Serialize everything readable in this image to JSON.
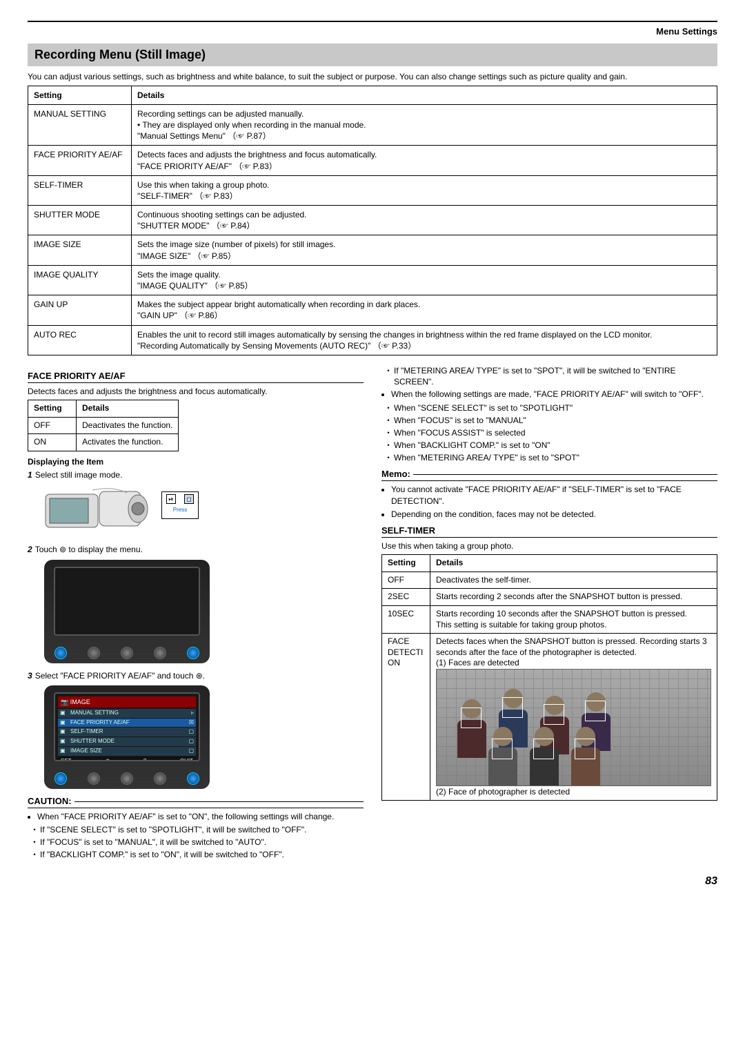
{
  "header": {
    "section": "Menu Settings"
  },
  "title": "Recording Menu (Still Image)",
  "intro": "You can adjust various settings, such as brightness and white balance, to suit the subject or purpose. You can also change settings such as picture quality and gain.",
  "main_table": {
    "columns": [
      "Setting",
      "Details"
    ],
    "rows": [
      {
        "setting": "MANUAL SETTING",
        "details": "Recording settings can be adjusted manually.\n• They are displayed only when recording in the manual mode.\n\"Manual Settings Menu\" （☞ P.87）"
      },
      {
        "setting": "FACE PRIORITY AE/AF",
        "details": "Detects faces and adjusts the brightness and focus automatically.\n\"FACE PRIORITY AE/AF\" （☞ P.83）"
      },
      {
        "setting": "SELF-TIMER",
        "details": "Use this when taking a group photo.\n\"SELF-TIMER\" （☞ P.83）"
      },
      {
        "setting": "SHUTTER MODE",
        "details": "Continuous shooting settings can be adjusted.\n\"SHUTTER MODE\" （☞ P.84）"
      },
      {
        "setting": "IMAGE SIZE",
        "details": "Sets the image size (number of pixels) for still images.\n\"IMAGE SIZE\" （☞ P.85）"
      },
      {
        "setting": "IMAGE QUALITY",
        "details": "Sets the image quality.\n\"IMAGE QUALITY\" （☞ P.85）"
      },
      {
        "setting": "GAIN UP",
        "details": "Makes the subject appear bright automatically when recording in dark places.\n\"GAIN UP\" （☞ P.86）"
      },
      {
        "setting": "AUTO REC",
        "details": "Enables the unit to record still images automatically by sensing the changes in brightness within the red frame displayed on the LCD monitor.\n\"Recording Automatically by Sensing Movements (AUTO REC)\" （☞ P.33）"
      }
    ]
  },
  "face_priority": {
    "heading": "FACE PRIORITY AE/AF",
    "desc": "Detects faces and adjusts the brightness and focus automatically.",
    "table": {
      "columns": [
        "Setting",
        "Details"
      ],
      "rows": [
        {
          "setting": "OFF",
          "details": "Deactivates the function."
        },
        {
          "setting": "ON",
          "details": "Activates the function."
        }
      ]
    }
  },
  "displaying": {
    "heading": "Displaying the Item",
    "steps": [
      {
        "n": "1",
        "text": "Select still image mode."
      },
      {
        "n": "2",
        "text": "Touch ⊚ to display the menu."
      },
      {
        "n": "3",
        "text": "Select \"FACE PRIORITY AE/AF\" and touch ⊛."
      }
    ],
    "screen_icons": {
      "left": "⏯",
      "right": "◻",
      "press": "Press"
    },
    "menu": {
      "title": "IMAGE",
      "items": [
        {
          "label": "MANUAL SETTING",
          "end": "▹"
        },
        {
          "label": "FACE PRIORITY AE/AF",
          "end": "☒",
          "selected": true
        },
        {
          "label": "SELF-TIMER",
          "end": "▢"
        },
        {
          "label": "SHUTTER MODE",
          "end": "▢"
        },
        {
          "label": "IMAGE SIZE",
          "end": "▢"
        }
      ],
      "bottom": {
        "set": "SET",
        "back": "↶",
        "help": "?",
        "quit": "QUIT"
      }
    }
  },
  "caution": {
    "heading": "CAUTION:",
    "intro": "When \"FACE PRIORITY AE/AF\" is set to \"ON\", the following settings will change.",
    "items": [
      "If \"SCENE SELECT\" is set to \"SPOTLIGHT\", it will be switched to \"OFF\".",
      "If \"FOCUS\" is set to \"MANUAL\", it will be switched to \"AUTO\".",
      "If \"BACKLIGHT COMP.\" is set to \"ON\", it will be switched to \"OFF\"."
    ]
  },
  "right_top": {
    "first": "If \"METERING AREA/ TYPE\" is set to \"SPOT\", it will be switched to \"ENTIRE SCREEN\".",
    "intro": "When the following settings are made, \"FACE PRIORITY AE/AF\" will switch to \"OFF\".",
    "items": [
      "When \"SCENE SELECT\" is set to \"SPOTLIGHT\"",
      "When \"FOCUS\" is set to \"MANUAL\"",
      "When \"FOCUS ASSIST\" is selected",
      "When \"BACKLIGHT COMP.\" is set to \"ON\"",
      "When \"METERING AREA/ TYPE\" is set to \"SPOT\""
    ]
  },
  "memo": {
    "heading": "Memo:",
    "items": [
      "You cannot activate \"FACE PRIORITY AE/AF\" if \"SELF-TIMER\" is set to \"FACE DETECTION\".",
      "Depending on the condition, faces may not be detected."
    ]
  },
  "self_timer": {
    "heading": "SELF-TIMER",
    "desc": "Use this when taking a group photo.",
    "table": {
      "columns": [
        "Setting",
        "Details"
      ],
      "rows": [
        {
          "setting": "OFF",
          "details": "Deactivates the self-timer."
        },
        {
          "setting": "2SEC",
          "details": "Starts recording 2 seconds after the SNAPSHOT button is pressed."
        },
        {
          "setting": "10SEC",
          "details": "Starts recording 10 seconds after the SNAPSHOT button is pressed.\nThis setting is suitable for taking group photos."
        },
        {
          "setting": "FACE DETECTION",
          "details": "Detects faces when the SNAPSHOT button is pressed. Recording starts 3 seconds after the face of the photographer is detected.\n(1) Faces are detected",
          "has_image": true,
          "caption2": "(2) Face of photographer is detected"
        }
      ]
    }
  },
  "page_number": "83"
}
